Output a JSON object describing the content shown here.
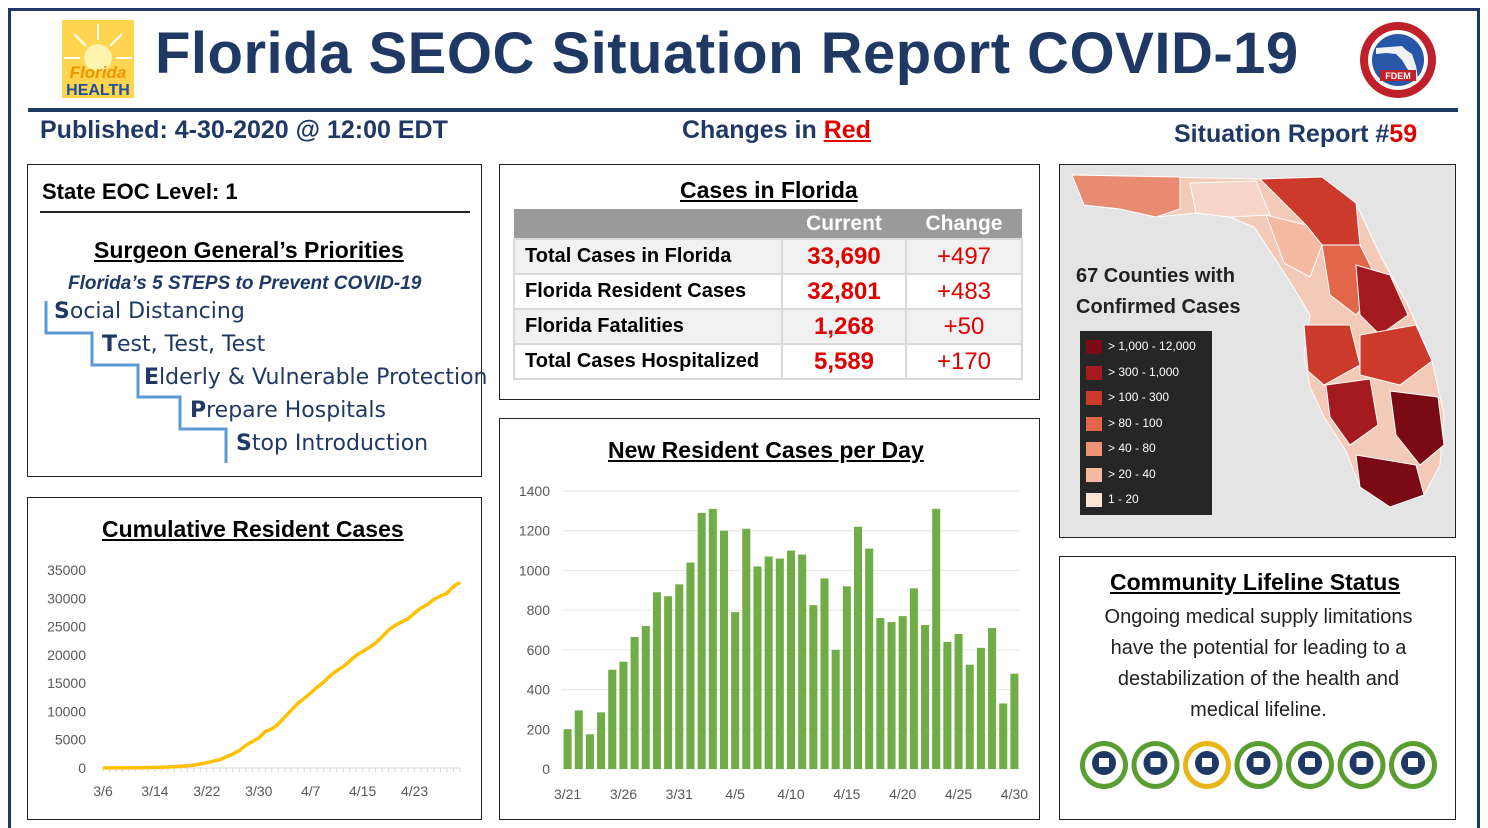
{
  "header": {
    "title": "Florida SEOC Situation Report COVID-19",
    "left_logo_text": [
      "Florida",
      "HEALTH"
    ],
    "right_logo_text": "FDEM",
    "published": "Published: 4-30-2020 @ 12:00 EDT",
    "changes_prefix": "Changes in ",
    "changes_word": "Red",
    "report_prefix": "Situation Report #",
    "report_number": "59"
  },
  "priorities": {
    "eoc_level": "State EOC Level: 1",
    "title": "Surgeon General’s Priorities",
    "subtitle": "Florida’s 5 STEPS to Prevent COVID-19",
    "steps": [
      {
        "initial": "S",
        "rest": "ocial Distancing"
      },
      {
        "initial": "T",
        "rest": "est, Test, Test"
      },
      {
        "initial": "E",
        "rest": "lderly & Vulnerable Protection"
      },
      {
        "initial": "P",
        "rest": "repare Hospitals"
      },
      {
        "initial": "S",
        "rest": "top Introduction"
      }
    ]
  },
  "cases": {
    "title": "Cases in Florida",
    "headers": [
      "",
      "Current",
      "Change"
    ],
    "rows": [
      {
        "label": "Total Cases in Florida",
        "current": "33,690",
        "change": "+497"
      },
      {
        "label": "Florida Resident Cases",
        "current": "32,801",
        "change": "+483"
      },
      {
        "label": "Florida Fatalities",
        "current": "1,268",
        "change": "+50"
      },
      {
        "label": "Total Cases Hospitalized",
        "current": "5,589",
        "change": "+170"
      }
    ]
  },
  "map": {
    "caption_line1": "67 Counties with",
    "caption_line2": "Confirmed Cases",
    "legend": [
      {
        "label": "> 1,000 - 12,000",
        "color": "#7a0a14"
      },
      {
        "label": "> 300 - 1,000",
        "color": "#a51a1f"
      },
      {
        "label": "> 100 - 300",
        "color": "#cc3a2c"
      },
      {
        "label": "> 80 - 100",
        "color": "#e2674a"
      },
      {
        "label": "> 40 - 80",
        "color": "#ee9375"
      },
      {
        "label": "> 20 - 40",
        "color": "#f5baa2"
      },
      {
        "label": "1 - 20",
        "color": "#fbe3d6"
      }
    ]
  },
  "lifeline": {
    "title": "Community Lifeline Status",
    "text_lines": [
      "Ongoing medical supply limitations",
      "have the potential for leading to a",
      "destabilization of the health and",
      "medical lifeline."
    ],
    "icons": [
      {
        "name": "safety-security",
        "ring": "#5a9e32"
      },
      {
        "name": "food-water-shelter",
        "ring": "#5a9e32"
      },
      {
        "name": "health-medical",
        "ring": "#e8b416"
      },
      {
        "name": "energy",
        "ring": "#5a9e32"
      },
      {
        "name": "communications",
        "ring": "#5a9e32"
      },
      {
        "name": "transportation",
        "ring": "#5a9e32"
      },
      {
        "name": "hazardous-materials",
        "ring": "#5a9e32"
      }
    ]
  },
  "chart_data": [
    {
      "type": "line",
      "title": "Cumulative Resident Cases",
      "color": "#ffc000",
      "ylim": [
        0,
        35000
      ],
      "yticks": [
        0,
        5000,
        10000,
        15000,
        20000,
        25000,
        30000,
        35000
      ],
      "xtick_labels": [
        "3/6",
        "3/14",
        "3/22",
        "3/30",
        "4/7",
        "4/15",
        "4/23"
      ],
      "x": [
        "3/6",
        "3/7",
        "3/8",
        "3/9",
        "3/10",
        "3/11",
        "3/12",
        "3/13",
        "3/14",
        "3/15",
        "3/16",
        "3/17",
        "3/18",
        "3/19",
        "3/20",
        "3/21",
        "3/22",
        "3/23",
        "3/24",
        "3/25",
        "3/26",
        "3/27",
        "3/28",
        "3/29",
        "3/30",
        "3/31",
        "4/1",
        "4/2",
        "4/3",
        "4/4",
        "4/5",
        "4/6",
        "4/7",
        "4/8",
        "4/9",
        "4/10",
        "4/11",
        "4/12",
        "4/13",
        "4/14",
        "4/15",
        "4/16",
        "4/17",
        "4/18",
        "4/19",
        "4/20",
        "4/21",
        "4/22",
        "4/23",
        "4/24",
        "4/25",
        "4/26",
        "4/27",
        "4/28",
        "4/29",
        "4/30"
      ],
      "values": [
        10,
        12,
        16,
        18,
        26,
        30,
        45,
        70,
        100,
        140,
        170,
        230,
        300,
        400,
        520,
        720,
        930,
        1200,
        1470,
        1960,
        2480,
        3100,
        3990,
        4670,
        5300,
        6450,
        6900,
        7780,
        9000,
        10200,
        11400,
        12300,
        13300,
        14300,
        15200,
        16300,
        17200,
        17900,
        18900,
        19900,
        20600,
        21300,
        22100,
        23200,
        24400,
        25200,
        25800,
        26400,
        27400,
        28300,
        28900,
        29800,
        30400,
        30900,
        32100,
        32801
      ]
    },
    {
      "type": "bar",
      "title": "New Resident Cases per Day",
      "color": "#70ad47",
      "ylim": [
        0,
        1400
      ],
      "yticks": [
        0,
        200,
        400,
        600,
        800,
        1000,
        1200,
        1400
      ],
      "xtick_labels": [
        "3/21",
        "3/26",
        "3/31",
        "4/5",
        "4/10",
        "4/15",
        "4/20",
        "4/25",
        "4/30"
      ],
      "categories": [
        "3/21",
        "3/22",
        "3/23",
        "3/24",
        "3/25",
        "3/26",
        "3/27",
        "3/28",
        "3/29",
        "3/30",
        "3/31",
        "4/1",
        "4/2",
        "4/3",
        "4/4",
        "4/5",
        "4/6",
        "4/7",
        "4/8",
        "4/9",
        "4/10",
        "4/11",
        "4/12",
        "4/13",
        "4/14",
        "4/15",
        "4/16",
        "4/17",
        "4/18",
        "4/19",
        "4/20",
        "4/21",
        "4/22",
        "4/23",
        "4/24",
        "4/25",
        "4/26",
        "4/27",
        "4/28",
        "4/29",
        "4/30"
      ],
      "values": [
        200,
        295,
        175,
        285,
        500,
        540,
        665,
        720,
        890,
        870,
        930,
        1040,
        1290,
        1310,
        1200,
        790,
        1210,
        1020,
        1070,
        1060,
        1100,
        1080,
        825,
        960,
        600,
        920,
        1220,
        1110,
        760,
        740,
        770,
        910,
        725,
        1310,
        640,
        680,
        525,
        610,
        710,
        330,
        480
      ]
    }
  ]
}
